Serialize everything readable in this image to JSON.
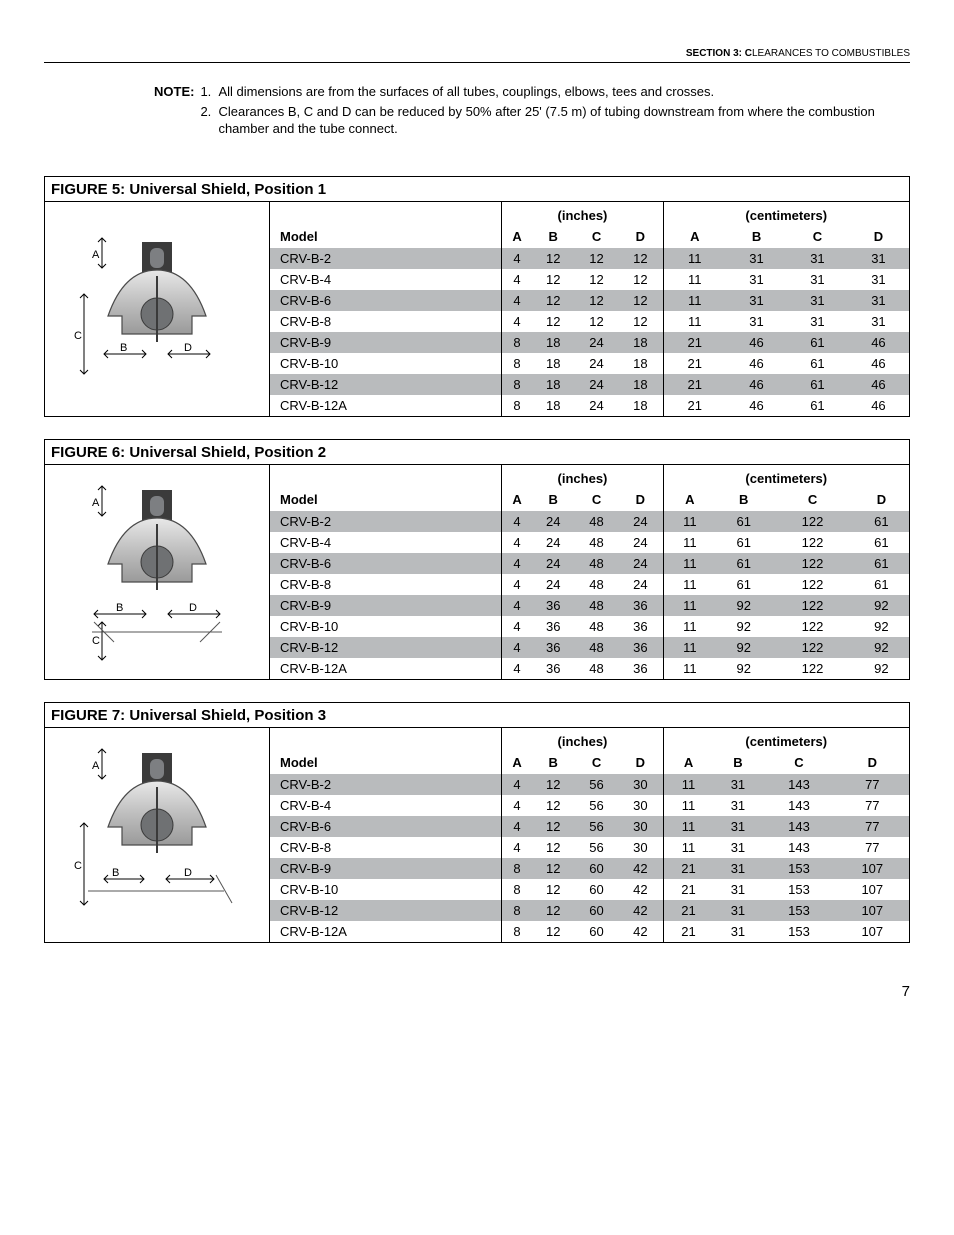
{
  "header": {
    "section_small": "SECTION 3: C",
    "section_rest": "LEARANCES TO COMBUSTIBLES"
  },
  "note": {
    "label": "NOTE:",
    "items": [
      {
        "num": "1.",
        "text": "All dimensions are from the surfaces of all tubes, couplings, elbows, tees and crosses."
      },
      {
        "num": "2.",
        "text": "Clearances B, C and D can be reduced by 50% after 25' (7.5 m) of tubing downstream from where the combustion chamber and the tube connect."
      }
    ]
  },
  "labels": {
    "model": "Model",
    "inches": "(inches)",
    "centimeters": "(centimeters)",
    "A": "A",
    "B": "B",
    "C": "C",
    "D": "D"
  },
  "page": "7",
  "figures": [
    {
      "title": "FIGURE 5: Universal Shield, Position 1",
      "diagram": "pos1",
      "rows": [
        {
          "model": "CRV-B-2",
          "in": [
            4,
            12,
            12,
            12
          ],
          "cm": [
            11,
            31,
            31,
            31
          ],
          "shade": true
        },
        {
          "model": "CRV-B-4",
          "in": [
            4,
            12,
            12,
            12
          ],
          "cm": [
            11,
            31,
            31,
            31
          ],
          "shade": false
        },
        {
          "model": "CRV-B-6",
          "in": [
            4,
            12,
            12,
            12
          ],
          "cm": [
            11,
            31,
            31,
            31
          ],
          "shade": true
        },
        {
          "model": "CRV-B-8",
          "in": [
            4,
            12,
            12,
            12
          ],
          "cm": [
            11,
            31,
            31,
            31
          ],
          "shade": false
        },
        {
          "model": "CRV-B-9",
          "in": [
            8,
            18,
            24,
            18
          ],
          "cm": [
            21,
            46,
            61,
            46
          ],
          "shade": true
        },
        {
          "model": "CRV-B-10",
          "in": [
            8,
            18,
            24,
            18
          ],
          "cm": [
            21,
            46,
            61,
            46
          ],
          "shade": false
        },
        {
          "model": "CRV-B-12",
          "in": [
            8,
            18,
            24,
            18
          ],
          "cm": [
            21,
            46,
            61,
            46
          ],
          "shade": true
        },
        {
          "model": "CRV-B-12A",
          "in": [
            8,
            18,
            24,
            18
          ],
          "cm": [
            21,
            46,
            61,
            46
          ],
          "shade": false
        }
      ]
    },
    {
      "title": "FIGURE 6: Universal Shield, Position 2",
      "diagram": "pos2",
      "rows": [
        {
          "model": "CRV-B-2",
          "in": [
            4,
            24,
            48,
            24
          ],
          "cm": [
            11,
            61,
            122,
            61
          ],
          "shade": true
        },
        {
          "model": "CRV-B-4",
          "in": [
            4,
            24,
            48,
            24
          ],
          "cm": [
            11,
            61,
            122,
            61
          ],
          "shade": false
        },
        {
          "model": "CRV-B-6",
          "in": [
            4,
            24,
            48,
            24
          ],
          "cm": [
            11,
            61,
            122,
            61
          ],
          "shade": true
        },
        {
          "model": "CRV-B-8",
          "in": [
            4,
            24,
            48,
            24
          ],
          "cm": [
            11,
            61,
            122,
            61
          ],
          "shade": false
        },
        {
          "model": "CRV-B-9",
          "in": [
            4,
            36,
            48,
            36
          ],
          "cm": [
            11,
            92,
            122,
            92
          ],
          "shade": true
        },
        {
          "model": "CRV-B-10",
          "in": [
            4,
            36,
            48,
            36
          ],
          "cm": [
            11,
            92,
            122,
            92
          ],
          "shade": false
        },
        {
          "model": "CRV-B-12",
          "in": [
            4,
            36,
            48,
            36
          ],
          "cm": [
            11,
            92,
            122,
            92
          ],
          "shade": true
        },
        {
          "model": "CRV-B-12A",
          "in": [
            4,
            36,
            48,
            36
          ],
          "cm": [
            11,
            92,
            122,
            92
          ],
          "shade": false
        }
      ]
    },
    {
      "title": "FIGURE 7: Universal Shield, Position 3",
      "diagram": "pos3",
      "rows": [
        {
          "model": "CRV-B-2",
          "in": [
            4,
            12,
            56,
            30
          ],
          "cm": [
            11,
            31,
            143,
            77
          ],
          "shade": true
        },
        {
          "model": "CRV-B-4",
          "in": [
            4,
            12,
            56,
            30
          ],
          "cm": [
            11,
            31,
            143,
            77
          ],
          "shade": false
        },
        {
          "model": "CRV-B-6",
          "in": [
            4,
            12,
            56,
            30
          ],
          "cm": [
            11,
            31,
            143,
            77
          ],
          "shade": true
        },
        {
          "model": "CRV-B-8",
          "in": [
            4,
            12,
            56,
            30
          ],
          "cm": [
            11,
            31,
            143,
            77
          ],
          "shade": false
        },
        {
          "model": "CRV-B-9",
          "in": [
            8,
            12,
            60,
            42
          ],
          "cm": [
            21,
            31,
            153,
            107
          ],
          "shade": true
        },
        {
          "model": "CRV-B-10",
          "in": [
            8,
            12,
            60,
            42
          ],
          "cm": [
            21,
            31,
            153,
            107
          ],
          "shade": false
        },
        {
          "model": "CRV-B-12",
          "in": [
            8,
            12,
            60,
            42
          ],
          "cm": [
            21,
            31,
            153,
            107
          ],
          "shade": true
        },
        {
          "model": "CRV-B-12A",
          "in": [
            8,
            12,
            60,
            42
          ],
          "cm": [
            21,
            31,
            153,
            107
          ],
          "shade": false
        }
      ]
    }
  ],
  "colors": {
    "shade": "#b9bbbd",
    "rule": "#000000"
  }
}
